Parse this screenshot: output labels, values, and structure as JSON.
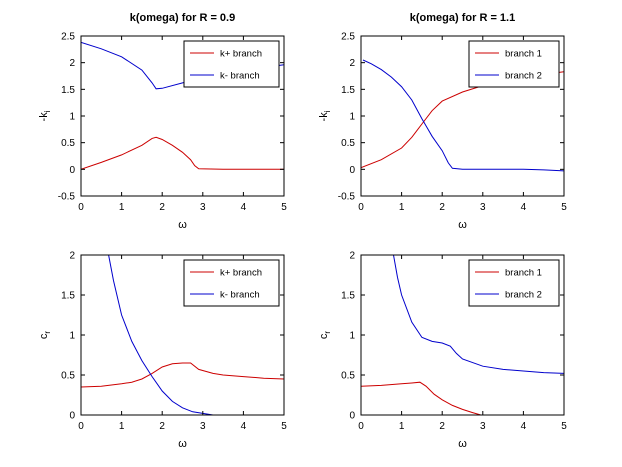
{
  "colors": {
    "red": "#cc0000",
    "blue": "#0000cc"
  },
  "chart_data": [
    {
      "type": "line",
      "title": "k(omega) for R = 0.9",
      "xlabel": "ω",
      "ylabel": "-k",
      "ylabel_sub": "i",
      "xlim": [
        0,
        5
      ],
      "ylim": [
        -0.5,
        2.5
      ],
      "xticks": [
        "0",
        "1",
        "2",
        "3",
        "4",
        "5"
      ],
      "yticks": [
        "-0.5",
        "0",
        "0.5",
        "1",
        "1.5",
        "2",
        "2.5"
      ],
      "legend_position": "top-right",
      "series": [
        {
          "name": "k+ branch",
          "color": "red",
          "x": [
            0,
            0.5,
            1,
            1.5,
            1.75,
            1.85,
            2,
            2.25,
            2.5,
            2.7,
            2.8,
            2.9,
            3.5,
            4,
            4.5,
            5
          ],
          "y": [
            0,
            0.13,
            0.27,
            0.45,
            0.58,
            0.6,
            0.56,
            0.45,
            0.32,
            0.18,
            0.07,
            0.01,
            0.0,
            0.0,
            0.0,
            0.0
          ]
        },
        {
          "name": "k- branch",
          "color": "blue",
          "x": [
            0,
            0.5,
            1,
            1.5,
            1.75,
            1.85,
            2,
            2.5,
            3,
            3.5,
            4,
            4.5,
            5
          ],
          "y": [
            2.38,
            2.26,
            2.11,
            1.86,
            1.62,
            1.51,
            1.52,
            1.62,
            1.72,
            1.8,
            1.86,
            1.91,
            1.96
          ]
        }
      ]
    },
    {
      "type": "line",
      "title": "k(omega) for R = 1.1",
      "xlabel": "ω",
      "ylabel": "-k",
      "ylabel_sub": "i",
      "xlim": [
        0,
        5
      ],
      "ylim": [
        -0.5,
        2.5
      ],
      "xticks": [
        "0",
        "1",
        "2",
        "3",
        "4",
        "5"
      ],
      "yticks": [
        "-0.5",
        "0",
        "0.5",
        "1",
        "1.5",
        "2",
        "2.5"
      ],
      "legend_position": "top-right",
      "series": [
        {
          "name": "branch 1",
          "color": "red",
          "x": [
            0,
            0.5,
            1,
            1.25,
            1.5,
            1.75,
            2,
            2.5,
            3,
            3.5,
            4,
            4.5,
            5
          ],
          "y": [
            0.03,
            0.18,
            0.4,
            0.6,
            0.85,
            1.1,
            1.28,
            1.45,
            1.57,
            1.65,
            1.72,
            1.78,
            1.83
          ]
        },
        {
          "name": "branch 2",
          "color": "blue",
          "x": [
            0.05,
            0.25,
            0.5,
            0.75,
            1,
            1.25,
            1.5,
            1.75,
            2,
            2.15,
            2.25,
            2.5,
            3,
            3.5,
            4,
            4.5,
            5
          ],
          "y": [
            2.05,
            1.98,
            1.87,
            1.73,
            1.55,
            1.3,
            0.95,
            0.62,
            0.35,
            0.12,
            0.02,
            0.0,
            0.0,
            0.0,
            0.0,
            -0.01,
            -0.03
          ]
        }
      ]
    },
    {
      "type": "line",
      "title": "",
      "xlabel": "ω",
      "ylabel": "c",
      "ylabel_sub": "r",
      "xlim": [
        0,
        5
      ],
      "ylim": [
        0,
        2
      ],
      "xticks": [
        "0",
        "1",
        "2",
        "3",
        "4",
        "5"
      ],
      "yticks": [
        "0",
        "0.5",
        "1",
        "1.5",
        "2"
      ],
      "legend_position": "top-right",
      "series": [
        {
          "name": "k+ branch",
          "color": "red",
          "x": [
            0,
            0.5,
            1,
            1.25,
            1.5,
            1.75,
            2,
            2.25,
            2.5,
            2.7,
            2.9,
            3.25,
            3.5,
            4,
            4.5,
            5
          ],
          "y": [
            0.35,
            0.36,
            0.39,
            0.41,
            0.45,
            0.52,
            0.6,
            0.64,
            0.65,
            0.65,
            0.57,
            0.52,
            0.5,
            0.48,
            0.46,
            0.45
          ]
        },
        {
          "name": "k- branch",
          "color": "blue",
          "x": [
            0.68,
            0.8,
            1,
            1.25,
            1.5,
            1.75,
            2,
            2.25,
            2.5,
            2.75,
            3,
            3.25
          ],
          "y": [
            2.0,
            1.68,
            1.25,
            0.92,
            0.68,
            0.48,
            0.3,
            0.17,
            0.09,
            0.04,
            0.02,
            0.0
          ]
        }
      ]
    },
    {
      "type": "line",
      "title": "",
      "xlabel": "ω",
      "ylabel": "c",
      "ylabel_sub": "r",
      "xlim": [
        0,
        5
      ],
      "ylim": [
        0,
        2
      ],
      "xticks": [
        "0",
        "1",
        "2",
        "3",
        "4",
        "5"
      ],
      "yticks": [
        "0",
        "0.5",
        "1",
        "1.5",
        "2"
      ],
      "legend_position": "top-right",
      "series": [
        {
          "name": "branch 1",
          "color": "red",
          "x": [
            0,
            0.5,
            1,
            1.25,
            1.45,
            1.6,
            1.8,
            2,
            2.25,
            2.5,
            2.75,
            2.95
          ],
          "y": [
            0.36,
            0.37,
            0.39,
            0.4,
            0.41,
            0.36,
            0.26,
            0.19,
            0.12,
            0.07,
            0.03,
            0.0
          ]
        },
        {
          "name": "branch 2",
          "color": "blue",
          "x": [
            0.8,
            0.9,
            1,
            1.25,
            1.5,
            1.75,
            2,
            2.2,
            2.35,
            2.5,
            3,
            3.5,
            4,
            4.5,
            5
          ],
          "y": [
            2.0,
            1.72,
            1.5,
            1.16,
            0.97,
            0.92,
            0.9,
            0.86,
            0.77,
            0.7,
            0.61,
            0.57,
            0.55,
            0.53,
            0.52
          ]
        }
      ]
    }
  ]
}
